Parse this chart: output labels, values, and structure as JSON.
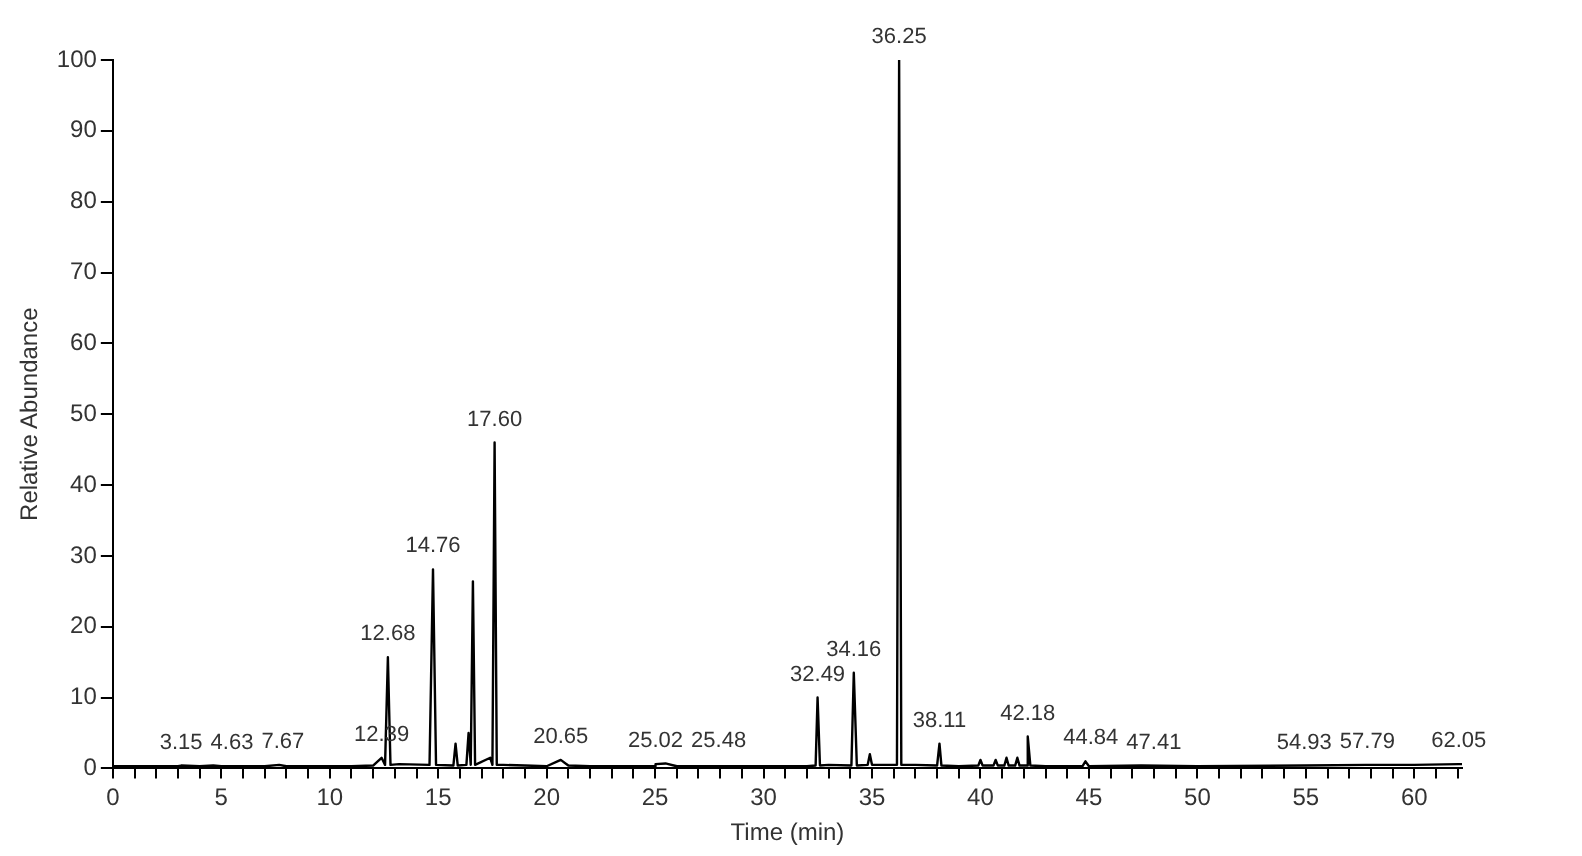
{
  "chart_data": {
    "type": "line",
    "xlabel": "Time (min)",
    "ylabel": "Relative Abundance",
    "xlim": [
      0,
      62.2
    ],
    "ylim": [
      0,
      100
    ],
    "xticks": [
      0,
      {
        "value": 1,
        "label": null
      },
      {
        "value": 2,
        "label": null
      },
      {
        "value": 3,
        "label": null
      },
      {
        "value": 4,
        "label": null
      },
      5,
      {
        "value": 6,
        "label": null
      },
      {
        "value": 7,
        "label": null
      },
      {
        "value": 8,
        "label": null
      },
      {
        "value": 9,
        "label": null
      },
      10,
      {
        "value": 11,
        "label": null
      },
      {
        "value": 12,
        "label": null
      },
      {
        "value": 13,
        "label": null
      },
      {
        "value": 14,
        "label": null
      },
      15,
      {
        "value": 16,
        "label": null
      },
      {
        "value": 17,
        "label": null
      },
      {
        "value": 18,
        "label": null
      },
      {
        "value": 19,
        "label": null
      },
      20,
      {
        "value": 21,
        "label": null
      },
      {
        "value": 22,
        "label": null
      },
      {
        "value": 23,
        "label": null
      },
      {
        "value": 24,
        "label": null
      },
      25,
      {
        "value": 26,
        "label": null
      },
      {
        "value": 27,
        "label": null
      },
      {
        "value": 28,
        "label": null
      },
      {
        "value": 29,
        "label": null
      },
      30,
      {
        "value": 31,
        "label": null
      },
      {
        "value": 32,
        "label": null
      },
      {
        "value": 33,
        "label": null
      },
      {
        "value": 34,
        "label": null
      },
      35,
      {
        "value": 36,
        "label": null
      },
      {
        "value": 37,
        "label": null
      },
      {
        "value": 38,
        "label": null
      },
      {
        "value": 39,
        "label": null
      },
      40,
      {
        "value": 41,
        "label": null
      },
      {
        "value": 42,
        "label": null
      },
      {
        "value": 43,
        "label": null
      },
      {
        "value": 44,
        "label": null
      },
      45,
      {
        "value": 46,
        "label": null
      },
      {
        "value": 47,
        "label": null
      },
      {
        "value": 48,
        "label": null
      },
      {
        "value": 49,
        "label": null
      },
      50,
      {
        "value": 51,
        "label": null
      },
      {
        "value": 52,
        "label": null
      },
      {
        "value": 53,
        "label": null
      },
      {
        "value": 54,
        "label": null
      },
      55,
      {
        "value": 56,
        "label": null
      },
      {
        "value": 57,
        "label": null
      },
      {
        "value": 58,
        "label": null
      },
      {
        "value": 59,
        "label": null
      },
      60,
      {
        "value": 61,
        "label": null
      },
      {
        "value": 62,
        "label": null
      }
    ],
    "yticks": [
      0,
      10,
      20,
      30,
      40,
      50,
      60,
      70,
      80,
      90,
      100
    ],
    "grid": false,
    "legend": false,
    "marker": "none",
    "line_style": "solid",
    "series": [
      {
        "color": "#000000",
        "x": [
          0,
          1,
          2,
          3,
          3.15,
          4,
          4.63,
          5,
          6,
          7,
          7.67,
          8,
          9,
          10,
          11,
          12,
          12.39,
          12.55,
          12.68,
          12.8,
          13.2,
          14.6,
          14.76,
          14.9,
          15.7,
          15.8,
          15.9,
          16.3,
          16.4,
          16.5,
          16.55,
          16.6,
          16.7,
          17.4,
          17.5,
          17.6,
          17.7,
          18,
          19,
          20,
          20.65,
          21,
          22,
          23,
          24,
          25,
          25.02,
          25.48,
          26,
          28,
          30,
          32,
          32.4,
          32.49,
          32.6,
          33,
          34.05,
          34.16,
          34.3,
          34.8,
          34.9,
          35,
          36.15,
          36.25,
          36.35,
          37,
          38,
          38.11,
          38.2,
          39,
          39.9,
          40,
          40.1,
          40.6,
          40.7,
          40.8,
          41.1,
          41.2,
          41.3,
          41.6,
          41.7,
          41.8,
          42.1,
          42.18,
          42.3,
          43,
          44.7,
          44.84,
          45,
          47.41,
          50,
          54.93,
          57.79,
          60,
          62.05,
          62.2
        ],
        "values": [
          0.3,
          0.3,
          0.3,
          0.3,
          0.4,
          0.3,
          0.4,
          0.3,
          0.3,
          0.3,
          0.5,
          0.3,
          0.3,
          0.3,
          0.3,
          0.4,
          1.5,
          0.5,
          15.7,
          0.5,
          0.6,
          0.5,
          28.1,
          0.5,
          0.4,
          3.5,
          0.4,
          0.5,
          5,
          0.5,
          0.5,
          26.4,
          0.5,
          1.5,
          0.5,
          46,
          0.5,
          0.5,
          0.4,
          0.3,
          1.2,
          0.4,
          0.3,
          0.3,
          0.3,
          0.3,
          0.6,
          0.7,
          0.3,
          0.3,
          0.3,
          0.3,
          0.4,
          10,
          0.4,
          0.5,
          0.4,
          13.5,
          0.4,
          0.5,
          2,
          0.5,
          0.5,
          100,
          0.5,
          0.5,
          0.4,
          3.5,
          0.4,
          0.3,
          0.4,
          1.2,
          0.4,
          0.4,
          1.2,
          0.4,
          0.4,
          1.5,
          0.4,
          0.4,
          1.5,
          0.4,
          0.4,
          4.5,
          0.4,
          0.3,
          0.3,
          1,
          0.3,
          0.4,
          0.3,
          0.4,
          0.5,
          0.5,
          0.6,
          0.6
        ]
      }
    ],
    "annotations": [
      {
        "text": "3.15",
        "x": 3.15,
        "y": 0.4
      },
      {
        "text": "4.63",
        "x": 4.63,
        "y": 0.4
      },
      {
        "text": "7.67",
        "x": 7.67,
        "y": 0.5
      },
      {
        "text": "12.39",
        "x": 12.39,
        "y": 1.5
      },
      {
        "text": "12.68",
        "x": 12.68,
        "y": 15.7
      },
      {
        "text": "14.76",
        "x": 14.76,
        "y": 28.1
      },
      {
        "text": "17.60",
        "x": 17.6,
        "y": 46
      },
      {
        "text": "20.65",
        "x": 20.65,
        "y": 1.2
      },
      {
        "text": "25.02",
        "x": 25.02,
        "y": 0.6
      },
      {
        "text": "25.48",
        "x": 25.48,
        "y": 0.7
      },
      {
        "text": "32.49",
        "x": 32.49,
        "y": 10
      },
      {
        "text": "34.16",
        "x": 34.16,
        "y": 13.5
      },
      {
        "text": "36.25",
        "x": 36.25,
        "y": 100
      },
      {
        "text": "38.11",
        "x": 38.11,
        "y": 3.5
      },
      {
        "text": "42.18",
        "x": 42.18,
        "y": 4.5
      },
      {
        "text": "44.84",
        "x": 44.84,
        "y": 1
      },
      {
        "text": "47.41",
        "x": 47.41,
        "y": 0.4
      },
      {
        "text": "54.93",
        "x": 54.93,
        "y": 0.4
      },
      {
        "text": "57.79",
        "x": 57.79,
        "y": 0.5
      },
      {
        "text": "62.05",
        "x": 62.05,
        "y": 0.6
      }
    ]
  }
}
